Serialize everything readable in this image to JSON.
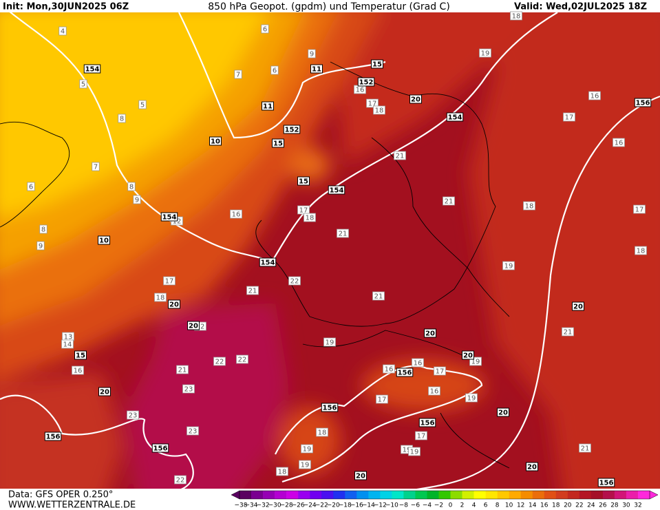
{
  "header": {
    "init": "Init: Mon,30JUN2025 06Z",
    "title": "850 hPa Geopot. (gpdm) und Temperatur (Grad C)",
    "valid": "Valid: Wed,02JUL2025 18Z"
  },
  "footer": {
    "data_source": "Data: GFS OPER 0.250°",
    "website": "WWW.WETTERZENTRALE.DE"
  },
  "colorbar": {
    "labels": [
      "−38",
      "−34",
      "−32",
      "−30",
      "−28",
      "−26",
      "−24",
      "−22",
      "−20",
      "−18",
      "−16",
      "−14",
      "−12",
      "−10",
      "−8",
      "−6",
      "−4",
      "−2",
      "0",
      "2",
      "4",
      "6",
      "8",
      "10",
      "12",
      "14",
      "16",
      "18",
      "20",
      "22",
      "24",
      "26",
      "28",
      "30",
      "32"
    ],
    "colors": [
      "#5a0060",
      "#7a0090",
      "#9600b4",
      "#b400d2",
      "#cc00e6",
      "#9a00f0",
      "#7000f0",
      "#4a10f0",
      "#2030f0",
      "#1060f0",
      "#0090f0",
      "#00b4f0",
      "#00d2e6",
      "#00e6c8",
      "#00d28c",
      "#00c850",
      "#00b428",
      "#32c800",
      "#8cdc00",
      "#d2f000",
      "#ffff00",
      "#ffe600",
      "#ffc800",
      "#ffaa00",
      "#f58c00",
      "#eb6e0a",
      "#e15014",
      "#d23c1e",
      "#c3281e",
      "#b41423",
      "#a50f28",
      "#b4104b",
      "#d21478",
      "#eb1eaa",
      "#ff28dc"
    ]
  },
  "map": {
    "geopotential_labels": [
      "154",
      "152",
      "152",
      "154",
      "156",
      "154",
      "154",
      "154",
      "156",
      "156",
      "156",
      "156",
      "156",
      "156",
      "10",
      "10",
      "11",
      "11",
      "15",
      "15",
      "15",
      "15",
      "20",
      "20",
      "20",
      "20",
      "20",
      "20",
      "20",
      "20",
      "20",
      "20"
    ],
    "temperature_labels": [
      "4",
      "6",
      "9",
      "7",
      "6",
      "5",
      "5",
      "8",
      "16",
      "17",
      "18",
      "7",
      "6",
      "8",
      "9",
      "8",
      "9",
      "12",
      "16",
      "17",
      "18",
      "21",
      "21",
      "21",
      "18",
      "17",
      "18",
      "19",
      "16",
      "17",
      "16",
      "19",
      "18",
      "22",
      "21",
      "21",
      "17",
      "18",
      "19",
      "22",
      "22",
      "21",
      "23",
      "23",
      "23",
      "22",
      "21",
      "21",
      "16",
      "16",
      "17",
      "16",
      "19",
      "19",
      "17",
      "17",
      "18",
      "19",
      "19",
      "19",
      "18",
      "19",
      "13",
      "14",
      "16",
      "12"
    ]
  }
}
